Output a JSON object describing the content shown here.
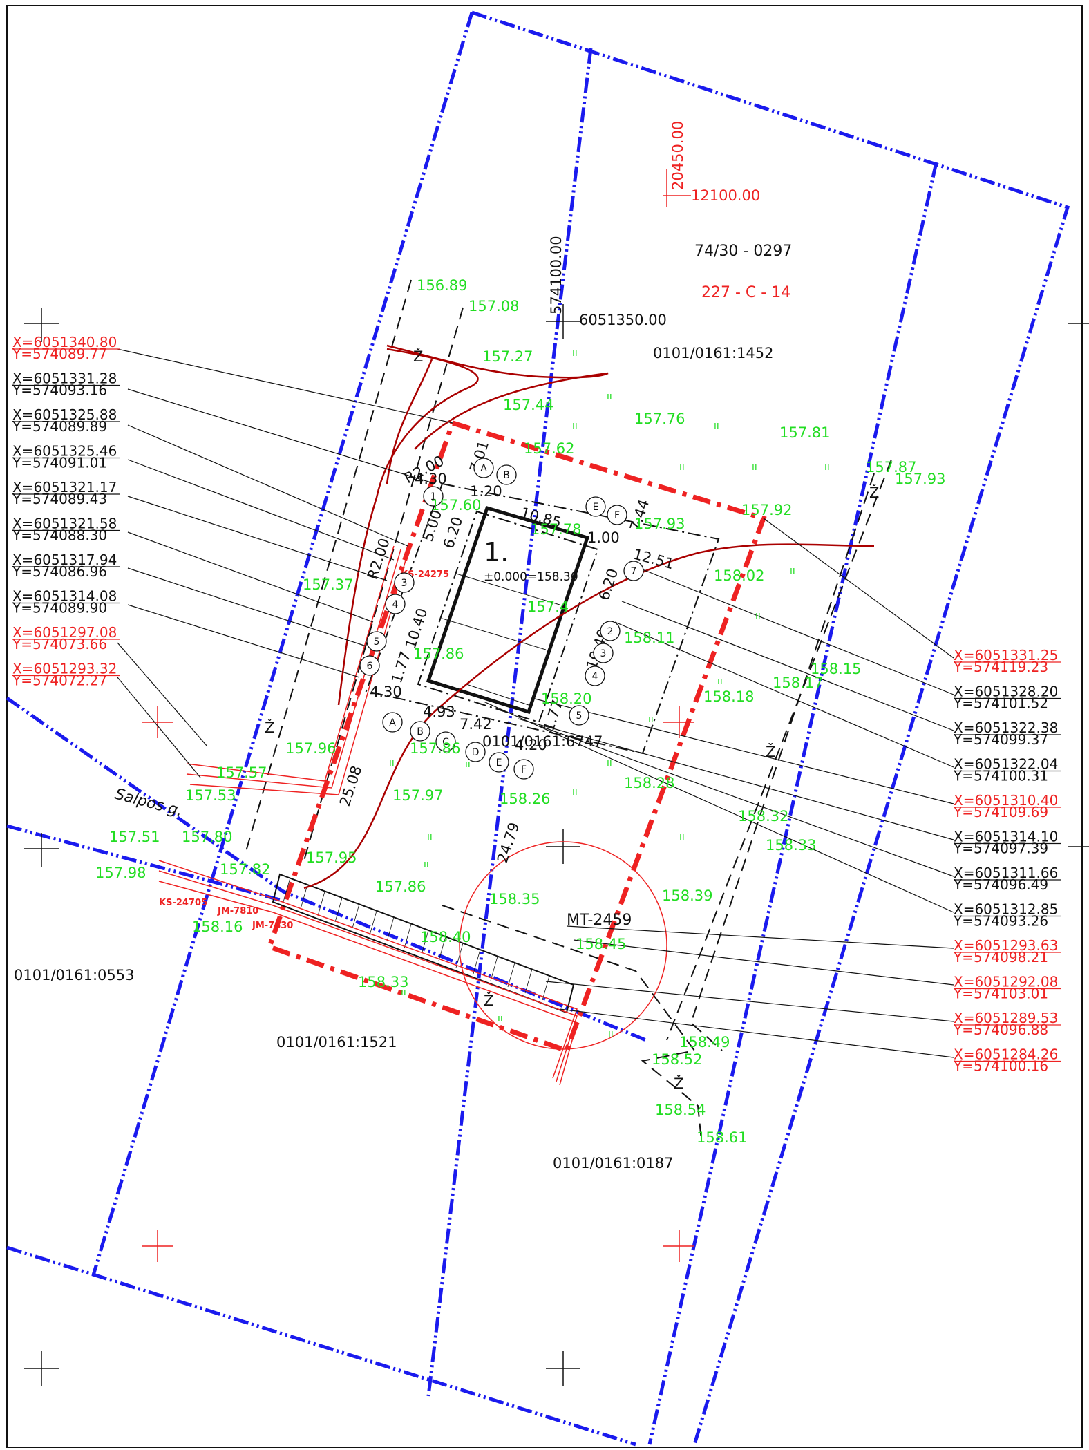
{
  "parcels": {
    "north": "0101/0161:1452",
    "center": "0101/0161:6747",
    "west": "0101/0161:0553",
    "south": "0101/0161:1521",
    "southeast": "0101/0161:0187"
  },
  "sheet": {
    "code": "74/30 - 0297",
    "map_ref": "227 - C - 14"
  },
  "grid_labels": {
    "x_red_top": "20450.00",
    "y_red_top": "12100.00",
    "x_black": "574100.00",
    "y_black": "6051350.00"
  },
  "building": {
    "number": "1.",
    "level": "±0.000=158.30"
  },
  "street": "Salpos g.",
  "utility": "MT-2459",
  "small_labels": {
    "ks1": "KS-24275",
    "ks2": "KS-24705",
    "jm1": "JM-7810",
    "jm2": "JM-7830"
  },
  "dimensions": {
    "d1": "R2.00",
    "d2": "R2.00",
    "d3": "4.30",
    "d4": "4.30",
    "d5": "7.01",
    "d6": "1.20",
    "d7": "5.00",
    "d8": "6.20",
    "d9": "10.85",
    "d10": "1.00",
    "d11": "7.44",
    "d12": "12.51",
    "d13": "6.20",
    "d14": "10.40",
    "d15": "10.40",
    "d16": "1.77",
    "d17": "4.93",
    "d18": "7.42",
    "d19": "4.20",
    "d20": "1.77",
    "d21": "25.08",
    "d22": "24.79"
  },
  "axis_marks": {
    "a1": "A",
    "b1": "B",
    "e1": "E",
    "f1": "F",
    "n1": "1",
    "n7": "7",
    "n3": "3",
    "n4": "4",
    "n5": "5",
    "n6": "6",
    "n2": "2",
    "n3b": "3",
    "n4b": "4",
    "n5b": "5",
    "a2": "A",
    "b2": "B",
    "c2": "C",
    "d2": "D",
    "e2": "E",
    "f2": "F"
  },
  "levels": {
    "l1": "156.89",
    "l2": "157.08",
    "l3": "157.27",
    "l4": "157.44",
    "l5": "157.62",
    "l6": "157.76",
    "l7": "157.81",
    "l8": "157.87",
    "l9": "157.93",
    "l10": "157.92",
    "l11": "157.93",
    "l12": "157.78",
    "l13": "157.60",
    "l14": "158.02",
    "l15": "158.11",
    "l16": "158.15",
    "l17": "158.17",
    "l18": "158.18",
    "l19": "158.20",
    "l20": "157.37",
    "l21": "157.86",
    "l22": "157.86",
    "l23": "157.96",
    "l24": "157.95",
    "l25": "157.57",
    "l26": "157.53",
    "l27": "157.51",
    "l28": "157.80",
    "l29": "157.98",
    "l30": "157.82",
    "l31": "158.16",
    "l32": "157.97",
    "l33": "158.26",
    "l34": "158.28",
    "l35": "158.32",
    "l36": "158.33",
    "l37": "157.95",
    "l38": "157.86",
    "l39": "158.35",
    "l40": "158.39",
    "l41": "158.45",
    "l42": "158.40",
    "l43": "158.33",
    "l44": "158.49",
    "l45": "158.52",
    "l46": "158.54",
    "l47": "158.61",
    "l48": "157.4"
  },
  "marks": {
    "z": "Ž"
  },
  "coords_left": [
    {
      "x": "X=6051340.80",
      "y": "Y=574089.77",
      "color": "#ee2222"
    },
    {
      "x": "X=6051331.28",
      "y": "Y=574093.16",
      "color": "#111111"
    },
    {
      "x": "X=6051325.88",
      "y": "Y=574089.89",
      "color": "#111111"
    },
    {
      "x": "X=6051325.46",
      "y": "Y=574091.01",
      "color": "#111111"
    },
    {
      "x": "X=6051321.17",
      "y": "Y=574089.43",
      "color": "#111111"
    },
    {
      "x": "X=6051321.58",
      "y": "Y=574088.30",
      "color": "#111111"
    },
    {
      "x": "X=6051317.94",
      "y": "Y=574086.96",
      "color": "#111111"
    },
    {
      "x": "X=6051314.08",
      "y": "Y=574089.90",
      "color": "#111111"
    },
    {
      "x": "X=6051297.08",
      "y": "Y=574073.66",
      "color": "#ee2222"
    },
    {
      "x": "X=6051293.32",
      "y": "Y=574072.27",
      "color": "#ee2222"
    }
  ],
  "coords_right": [
    {
      "x": "X=6051331.25",
      "y": "Y=574119.23",
      "color": "#ee2222"
    },
    {
      "x": "X=6051328.20",
      "y": "Y=574101.52",
      "color": "#111111"
    },
    {
      "x": "X=6051322.38",
      "y": "Y=574099.37",
      "color": "#111111"
    },
    {
      "x": "X=6051322.04",
      "y": "Y=574100.31",
      "color": "#111111"
    },
    {
      "x": "X=6051310.40",
      "y": "Y=574109.69",
      "color": "#ee2222"
    },
    {
      "x": "X=6051314.10",
      "y": "Y=574097.39",
      "color": "#111111"
    },
    {
      "x": "X=6051311.66",
      "y": "Y=574096.49",
      "color": "#111111"
    },
    {
      "x": "X=6051312.85",
      "y": "Y=574093.26",
      "color": "#111111"
    },
    {
      "x": "X=6051293.63",
      "y": "Y=574098.21",
      "color": "#ee2222"
    },
    {
      "x": "X=6051292.08",
      "y": "Y=574103.01",
      "color": "#ee2222"
    },
    {
      "x": "X=6051289.53",
      "y": "Y=574096.88",
      "color": "#ee2222"
    },
    {
      "x": "X=6051284.26",
      "y": "Y=574100.16",
      "color": "#ee2222"
    }
  ],
  "colors": {
    "boundary": "#1a1aee",
    "plot_border": "#ee2222",
    "levels": "#22dd22",
    "contour": "#aa0000",
    "linework": "#111111"
  }
}
